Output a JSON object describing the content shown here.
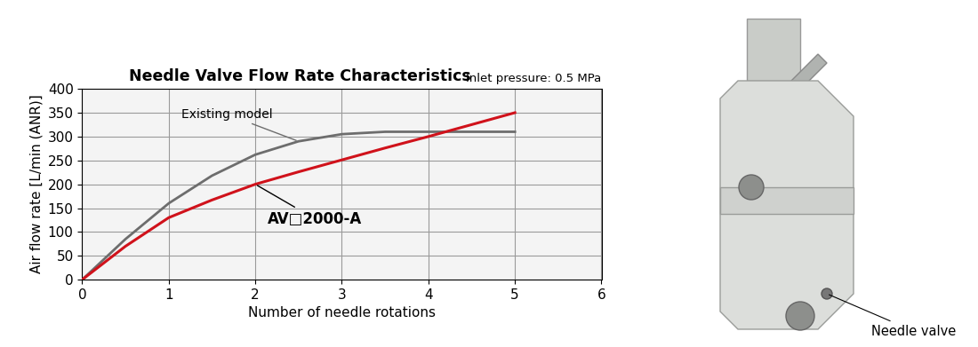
{
  "chart_data": {
    "type": "line",
    "title": "Needle Valve Flow Rate Characteristics",
    "subtitle": "Inlet pressure: 0.5 MPa",
    "x_label": "Number of needle rotations",
    "y_label": "Air flow rate [L/min (ANR)]",
    "x": [
      0,
      0.5,
      1,
      1.5,
      2,
      2.5,
      3,
      3.5,
      4,
      4.5,
      5
    ],
    "series": [
      {
        "name": "Existing model",
        "color": "#6d6d6d",
        "values": [
          0,
          85,
          160,
          218,
          262,
          290,
          305,
          310,
          310,
          310,
          310
        ]
      },
      {
        "name": "AV□2000-A",
        "color": "#d0121b",
        "values": [
          0,
          70,
          130,
          167,
          200,
          226,
          251,
          276,
          300,
          325,
          350
        ]
      }
    ],
    "xlim": [
      0,
      6
    ],
    "xticks": [
      0,
      1,
      2,
      3,
      4,
      5,
      6
    ],
    "ylim": [
      0,
      400
    ],
    "yticks": [
      0,
      50,
      100,
      150,
      200,
      250,
      300,
      350,
      400
    ],
    "grid": true
  },
  "image_callout": "Needle valve"
}
